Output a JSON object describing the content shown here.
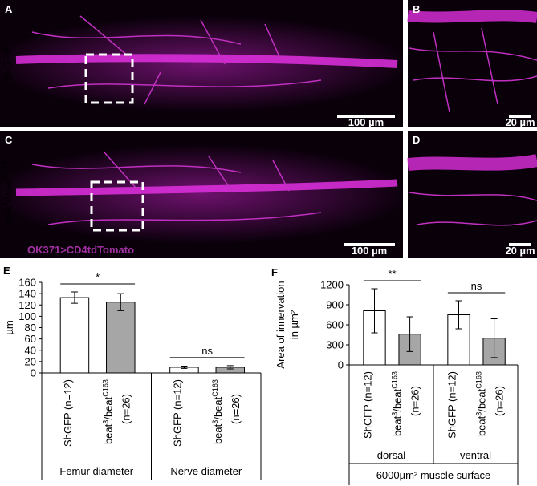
{
  "panels": {
    "images": [
      {
        "letter": "A",
        "scale": "100 µm"
      },
      {
        "letter": "B",
        "scale": "20 µm"
      },
      {
        "letter": "C",
        "scale": "100 µm",
        "caption": "OK371>CD4tdTomato"
      },
      {
        "letter": "D",
        "scale": "20 µm"
      }
    ],
    "row_labels": [
      [
        {
          "text": "ShGFP"
        }
      ],
      [
        {
          "text": "beat"
        },
        {
          "text": "3",
          "sup": true
        },
        {
          "text": "/beat"
        },
        {
          "text": "C163",
          "sup": true
        }
      ]
    ]
  },
  "chart_data": [
    {
      "type": "bar",
      "panel": "E",
      "ylabel": [
        "µm"
      ],
      "ylim": [
        0,
        160
      ],
      "yticks": [
        0,
        20,
        40,
        60,
        80,
        100,
        120,
        140,
        160
      ],
      "categories": [
        [
          [
            {
              "text": "ShGFP (n=12)"
            }
          ]
        ],
        [
          [
            {
              "text": "beat"
            },
            {
              "text": "3",
              "sup": true
            },
            {
              "text": "/beat"
            },
            {
              "text": "C163",
              "sup": true
            }
          ],
          [
            {
              "text": "(n=26)"
            }
          ]
        ],
        [
          [
            {
              "text": "ShGFP (n=12)"
            }
          ]
        ],
        [
          [
            {
              "text": "beat"
            },
            {
              "text": "3",
              "sup": true
            },
            {
              "text": "/beat"
            },
            {
              "text": "C163",
              "sup": true
            }
          ],
          [
            {
              "text": "(n=26)"
            }
          ]
        ]
      ],
      "values": [
        133,
        125,
        10,
        10
      ],
      "errors": [
        10,
        15,
        2,
        3
      ],
      "colors": [
        "#ffffff",
        "#a6a6a6",
        "#ffffff",
        "#a6a6a6"
      ],
      "groups": [
        {
          "label": "Femur diameter",
          "significance": "*"
        },
        {
          "label": "Nerve diameter",
          "significance": "ns"
        }
      ]
    },
    {
      "type": "bar",
      "panel": "F",
      "ylabel": [
        "Area of innervation",
        "in µm²"
      ],
      "ylim": [
        0,
        1200
      ],
      "yticks": [
        0,
        300,
        600,
        900,
        1200
      ],
      "categories": [
        [
          [
            {
              "text": "ShGFP (n=12)"
            }
          ]
        ],
        [
          [
            {
              "text": "beat"
            },
            {
              "text": "3",
              "sup": true
            },
            {
              "text": "/beat"
            },
            {
              "text": "C163",
              "sup": true
            }
          ],
          [
            {
              "text": "(n=26)"
            }
          ]
        ],
        [
          [
            {
              "text": "ShGFP (n=12)"
            }
          ]
        ],
        [
          [
            {
              "text": "beat"
            },
            {
              "text": "3",
              "sup": true
            },
            {
              "text": "/beat"
            },
            {
              "text": "C163",
              "sup": true
            }
          ],
          [
            {
              "text": "(n=26)"
            }
          ]
        ]
      ],
      "values": [
        810,
        460,
        750,
        400
      ],
      "errors": [
        330,
        260,
        210,
        290
      ],
      "colors": [
        "#ffffff",
        "#a6a6a6",
        "#ffffff",
        "#a6a6a6"
      ],
      "groups": [
        {
          "label": "dorsal",
          "significance": "**"
        },
        {
          "label": "ventral",
          "significance": "ns"
        }
      ],
      "footer": "6000µm² muscle surface"
    }
  ]
}
